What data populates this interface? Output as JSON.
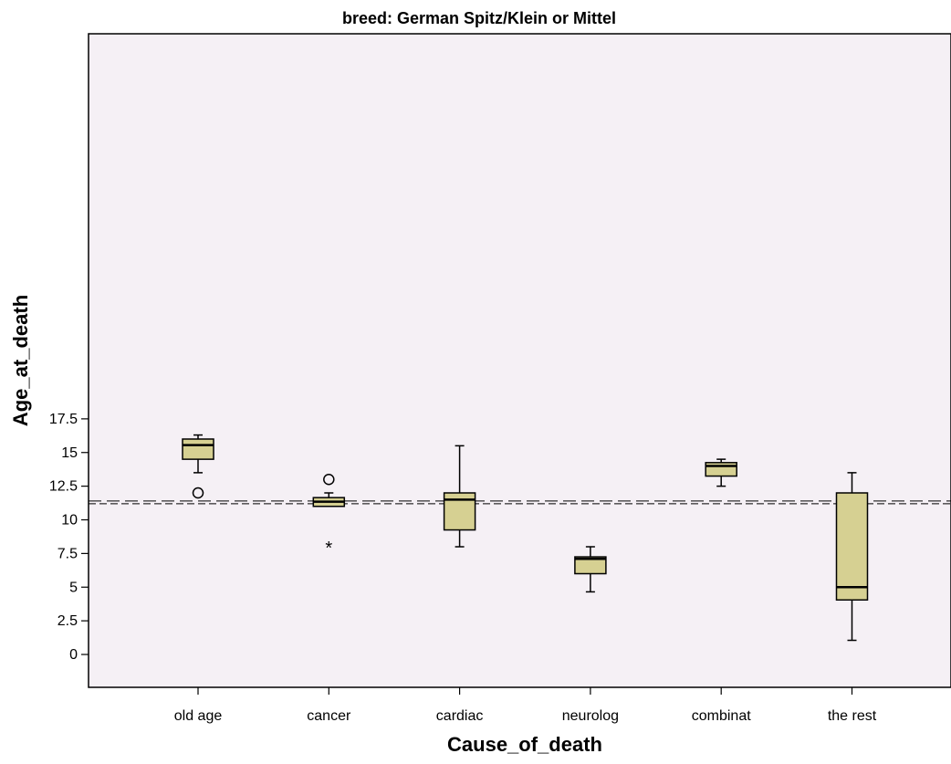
{
  "chart_data": {
    "type": "boxplot",
    "title": "breed: German Spitz/Klein or Mittel",
    "xlabel": "Cause_of_death",
    "ylabel": "Age_at_death",
    "ylim": [
      -1,
      18.5
    ],
    "yticks": [
      "0",
      "2.5",
      "5",
      "7.5",
      "10",
      "12.5",
      "15",
      "17.5"
    ],
    "ytick_values": [
      0,
      2.5,
      5,
      7.5,
      10,
      12.5,
      15,
      17.5
    ],
    "reference_line": 11.3,
    "grid": false,
    "categories": [
      "old age",
      "cancer",
      "cardiac",
      "neurolog",
      "combinat",
      "the rest"
    ],
    "boxes": [
      {
        "category": "old age",
        "whisker_low": 13.5,
        "q1": 14.5,
        "median": 15.55,
        "q3": 16.0,
        "whisker_high": 16.3,
        "outliers": [
          12.0
        ],
        "extremes": []
      },
      {
        "category": "cancer",
        "whisker_low": 11.0,
        "q1": 11.0,
        "median": 11.35,
        "q3": 11.65,
        "whisker_high": 12.0,
        "outliers": [
          13.0
        ],
        "extremes": [
          8.0
        ]
      },
      {
        "category": "cardiac",
        "whisker_low": 8.0,
        "q1": 9.25,
        "median": 11.5,
        "q3": 12.0,
        "whisker_high": 15.5,
        "outliers": [],
        "extremes": []
      },
      {
        "category": "neurolog",
        "whisker_low": 4.65,
        "q1": 6.0,
        "median": 7.1,
        "q3": 7.25,
        "whisker_high": 8.0,
        "outliers": [],
        "extremes": []
      },
      {
        "category": "combinat",
        "whisker_low": 12.5,
        "q1": 13.25,
        "median": 14.0,
        "q3": 14.25,
        "whisker_high": 14.5,
        "outliers": [],
        "extremes": []
      },
      {
        "category": "the rest",
        "whisker_low": 1.05,
        "q1": 4.05,
        "median": 5.0,
        "q3": 12.0,
        "whisker_high": 13.5,
        "outliers": [],
        "extremes": []
      }
    ],
    "colors": {
      "plot_background": "#f5f0f5",
      "box_fill": "#d6d092",
      "box_stroke": "#000000",
      "reference_line": "#000000"
    }
  }
}
